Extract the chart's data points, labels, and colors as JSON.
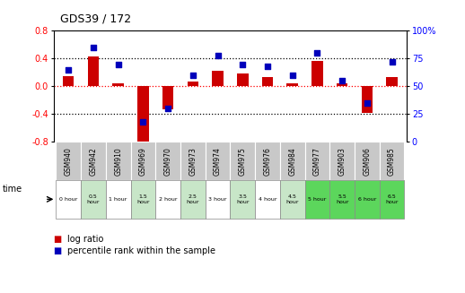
{
  "title": "GDS39 / 172",
  "samples": [
    "GSM940",
    "GSM942",
    "GSM910",
    "GSM969",
    "GSM970",
    "GSM973",
    "GSM974",
    "GSM975",
    "GSM976",
    "GSM984",
    "GSM977",
    "GSM903",
    "GSM906",
    "GSM985"
  ],
  "times": [
    "0 hour",
    "0.5\nhour",
    "1 hour",
    "1.5\nhour",
    "2 hour",
    "2.5\nhour",
    "3 hour",
    "3.5\nhour",
    "4 hour",
    "4.5\nhour",
    "5 hour",
    "5.5\nhour",
    "6 hour",
    "6.5\nhour"
  ],
  "log_ratio": [
    0.15,
    0.43,
    0.05,
    -0.82,
    -0.33,
    0.07,
    0.22,
    0.18,
    0.13,
    0.04,
    0.36,
    0.04,
    -0.38,
    0.13
  ],
  "percentile": [
    65,
    85,
    70,
    18,
    30,
    60,
    78,
    70,
    68,
    60,
    80,
    55,
    35,
    72
  ],
  "ylim_left": [
    -0.8,
    0.8
  ],
  "ylim_right": [
    0,
    100
  ],
  "yticks_left": [
    -0.8,
    -0.4,
    0.0,
    0.4,
    0.8
  ],
  "yticks_right": [
    0,
    25,
    50,
    75,
    100
  ],
  "bar_color": "#cc0000",
  "dot_color": "#0000bb",
  "bg_color_sample_row": "#c8c8c8",
  "time_colors": [
    "#ffffff",
    "#c8e6c8",
    "#ffffff",
    "#c8e6c8",
    "#ffffff",
    "#c8e6c8",
    "#ffffff",
    "#c8e6c8",
    "#ffffff",
    "#c8e6c8",
    "#5cd65c",
    "#5cd65c",
    "#5cd65c",
    "#5cd65c"
  ],
  "legend_bar_label": "log ratio",
  "legend_dot_label": "percentile rank within the sample"
}
